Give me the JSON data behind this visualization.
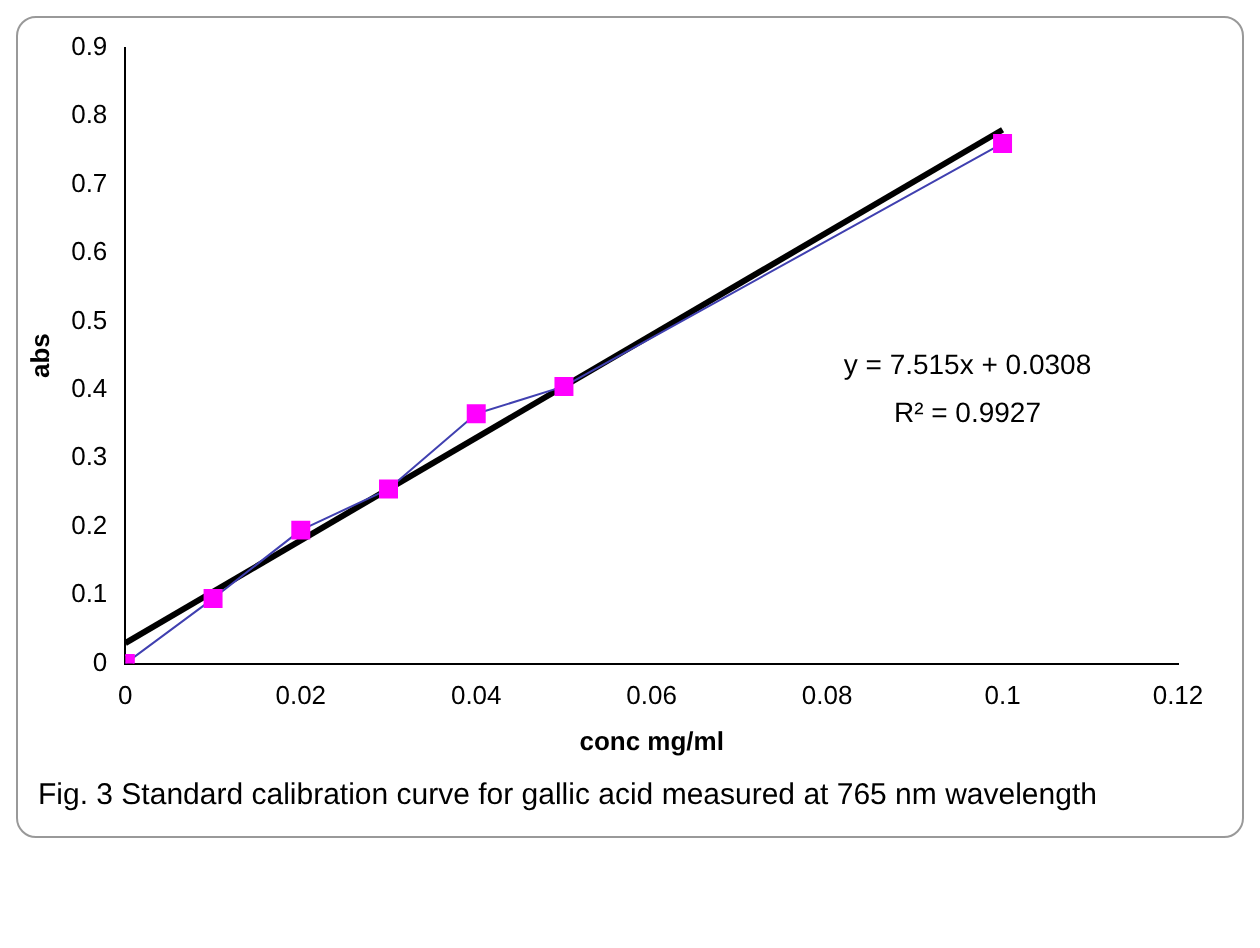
{
  "chart_data": {
    "type": "line",
    "xlabel": "conc mg/ml",
    "ylabel": "abs",
    "x": [
      0,
      0.01,
      0.02,
      0.03,
      0.04,
      0.05,
      0.1
    ],
    "series": [
      {
        "type": "line",
        "color": "#ff00ff",
        "marker": "square",
        "values": [
          0,
          0.095,
          0.195,
          0.255,
          0.365,
          0.405,
          0.76
        ]
      },
      {
        "type": "line",
        "color": "#000000",
        "marker": "none",
        "x": [
          0,
          0.1
        ],
        "values": [
          0.03,
          0.78
        ]
      }
    ],
    "xlim": [
      0,
      0.12
    ],
    "xticks": [
      0,
      0.02,
      0.04,
      0.06,
      0.08,
      0.1,
      0.12
    ],
    "ylim": [
      0,
      0.9
    ],
    "yticks": [
      0,
      0.1,
      0.2,
      0.3,
      0.4,
      0.5,
      0.6,
      0.7,
      0.8,
      0.9
    ],
    "grid": false,
    "legend": false,
    "annotations": [
      "y = 7.515x + 0.0308",
      "R² = 0.9927",
      "Fig. 3  Standard calibration curve for gallic acid measured at 765 nm wavelength"
    ]
  }
}
